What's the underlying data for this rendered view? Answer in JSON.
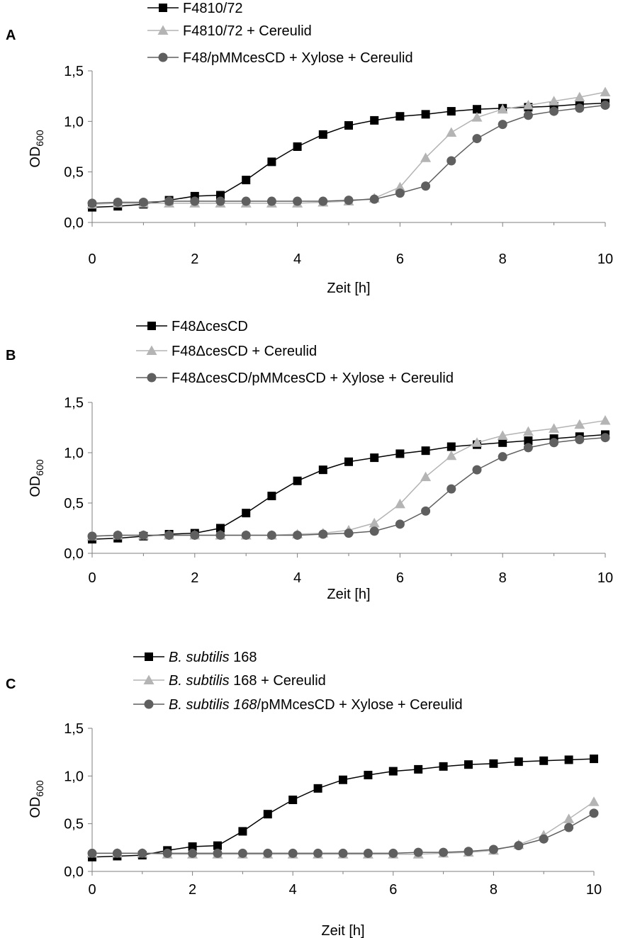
{
  "chart_data": [
    {
      "type": "line",
      "panel_label": "A",
      "xlabel": "Zeit [h]",
      "ylabel": "OD",
      "ylabel_sub": "600",
      "xlim": [
        0,
        10
      ],
      "ylim": [
        0,
        1.5
      ],
      "xticks": [
        "0",
        "2",
        "4",
        "6",
        "8",
        "10"
      ],
      "yticks": [
        "0,0",
        "0,5",
        "1,0",
        "1,5"
      ],
      "grid": false,
      "legend_position": "top",
      "x": [
        0,
        0.5,
        1,
        1.5,
        2,
        2.5,
        3,
        3.5,
        4,
        4.5,
        5,
        5.5,
        6,
        6.5,
        7,
        7.5,
        8,
        8.5,
        9,
        9.5,
        10
      ],
      "series": [
        {
          "name": "F4810/72",
          "color": "#000000",
          "marker": "square",
          "legend_parts": [
            {
              "text": "F4810/72",
              "italic": false
            }
          ],
          "values": [
            0.15,
            0.16,
            0.18,
            0.22,
            0.26,
            0.27,
            0.42,
            0.6,
            0.75,
            0.87,
            0.96,
            1.01,
            1.05,
            1.07,
            1.1,
            1.12,
            1.13,
            1.14,
            1.15,
            1.17,
            1.18
          ]
        },
        {
          "name": "F4810/72 + Cereulid",
          "color": "#b4b4b4",
          "marker": "triangle",
          "legend_parts": [
            {
              "text": "F4810/72 + Cereulid",
              "italic": false
            }
          ],
          "values": [
            0.18,
            0.19,
            0.19,
            0.19,
            0.19,
            0.19,
            0.19,
            0.19,
            0.19,
            0.2,
            0.21,
            0.24,
            0.35,
            0.64,
            0.89,
            1.04,
            1.12,
            1.16,
            1.2,
            1.24,
            1.29
          ]
        },
        {
          "name": "F48/pMMcesCD + Xylose + Cereulid",
          "color": "#5f5f5f",
          "marker": "circle",
          "legend_parts": [
            {
              "text": "F48/pMMcesCD + Xylose + Cereulid",
              "italic": false
            }
          ],
          "values": [
            0.19,
            0.2,
            0.2,
            0.21,
            0.21,
            0.21,
            0.21,
            0.21,
            0.21,
            0.21,
            0.22,
            0.23,
            0.29,
            0.36,
            0.61,
            0.83,
            0.97,
            1.06,
            1.1,
            1.13,
            1.16
          ]
        }
      ]
    },
    {
      "type": "line",
      "panel_label": "B",
      "xlabel": "Zeit [h]",
      "ylabel": "OD",
      "ylabel_sub": "600",
      "xlim": [
        0,
        10
      ],
      "ylim": [
        0,
        1.5
      ],
      "xticks": [
        "0",
        "2",
        "4",
        "6",
        "8",
        "10"
      ],
      "yticks": [
        "0,0",
        "0,5",
        "1,0",
        "1,5"
      ],
      "grid": false,
      "legend_position": "top",
      "x": [
        0,
        0.5,
        1,
        1.5,
        2,
        2.5,
        3,
        3.5,
        4,
        4.5,
        5,
        5.5,
        6,
        6.5,
        7,
        7.5,
        8,
        8.5,
        9,
        9.5,
        10
      ],
      "series": [
        {
          "name": "F48ΔcesCD",
          "color": "#000000",
          "marker": "square",
          "legend_parts": [
            {
              "text": "F48ΔcesCD",
              "italic": false
            }
          ],
          "values": [
            0.14,
            0.15,
            0.17,
            0.19,
            0.2,
            0.25,
            0.4,
            0.57,
            0.72,
            0.83,
            0.91,
            0.95,
            0.99,
            1.02,
            1.06,
            1.08,
            1.1,
            1.12,
            1.14,
            1.16,
            1.18
          ]
        },
        {
          "name": "F48ΔcesCD + Cereulid",
          "color": "#b4b4b4",
          "marker": "triangle",
          "legend_parts": [
            {
              "text": "F48ΔcesCD + Cereulid",
              "italic": false
            }
          ],
          "values": [
            0.17,
            0.18,
            0.18,
            0.18,
            0.18,
            0.18,
            0.18,
            0.18,
            0.19,
            0.2,
            0.23,
            0.3,
            0.49,
            0.76,
            0.97,
            1.1,
            1.17,
            1.21,
            1.24,
            1.28,
            1.32
          ]
        },
        {
          "name": "F48ΔcesCD/pMMcesCD + Xylose + Cereulid",
          "color": "#5f5f5f",
          "marker": "circle",
          "legend_parts": [
            {
              "text": "F48ΔcesCD/pMMcesCD + Xylose + Cereulid",
              "italic": false
            }
          ],
          "values": [
            0.17,
            0.18,
            0.18,
            0.18,
            0.18,
            0.18,
            0.18,
            0.18,
            0.18,
            0.19,
            0.2,
            0.22,
            0.29,
            0.42,
            0.64,
            0.83,
            0.96,
            1.05,
            1.1,
            1.13,
            1.15
          ]
        }
      ]
    },
    {
      "type": "line",
      "panel_label": "C",
      "xlabel": "Zeit [h]",
      "ylabel": "OD",
      "ylabel_sub": "600",
      "xlim": [
        0,
        10
      ],
      "ylim": [
        0,
        1.5
      ],
      "xticks": [
        "0",
        "2",
        "4",
        "6",
        "8",
        "10"
      ],
      "yticks": [
        "0,0",
        "0,5",
        "1,0",
        "1,5"
      ],
      "grid": false,
      "legend_position": "top",
      "x": [
        0,
        0.5,
        1,
        1.5,
        2,
        2.5,
        3,
        3.5,
        4,
        4.5,
        5,
        5.5,
        6,
        6.5,
        7,
        7.5,
        8,
        8.5,
        9,
        9.5,
        10
      ],
      "series": [
        {
          "name": "B. subtilis 168",
          "color": "#000000",
          "marker": "square",
          "legend_parts": [
            {
              "text": "B. subtilis",
              "italic": true
            },
            {
              "text": " 168",
              "italic": false
            }
          ],
          "values": [
            0.15,
            0.16,
            0.17,
            0.22,
            0.26,
            0.27,
            0.42,
            0.6,
            0.75,
            0.87,
            0.96,
            1.01,
            1.05,
            1.07,
            1.1,
            1.12,
            1.13,
            1.15,
            1.16,
            1.17,
            1.18
          ]
        },
        {
          "name": "B. subtilis 168 + Cereulid",
          "color": "#b4b4b4",
          "marker": "triangle",
          "legend_parts": [
            {
              "text": "B. subtilis",
              "italic": true
            },
            {
              "text": " 168 + Cereulid",
              "italic": false
            }
          ],
          "values": [
            0.19,
            0.19,
            0.19,
            0.18,
            0.18,
            0.18,
            0.18,
            0.18,
            0.18,
            0.18,
            0.18,
            0.18,
            0.18,
            0.18,
            0.19,
            0.2,
            0.22,
            0.28,
            0.38,
            0.55,
            0.73
          ]
        },
        {
          "name": "B. subtilis 168/pMMcesCD + Xylose + Cereulid",
          "color": "#5f5f5f",
          "marker": "circle",
          "legend_parts": [
            {
              "text": "B. subtilis 168",
              "italic": true
            },
            {
              "text": "/pMMcesCD + Xylose + Cereulid",
              "italic": false
            }
          ],
          "values": [
            0.19,
            0.19,
            0.19,
            0.19,
            0.19,
            0.19,
            0.19,
            0.19,
            0.19,
            0.19,
            0.19,
            0.19,
            0.19,
            0.2,
            0.2,
            0.21,
            0.23,
            0.27,
            0.34,
            0.46,
            0.61
          ]
        }
      ]
    }
  ]
}
